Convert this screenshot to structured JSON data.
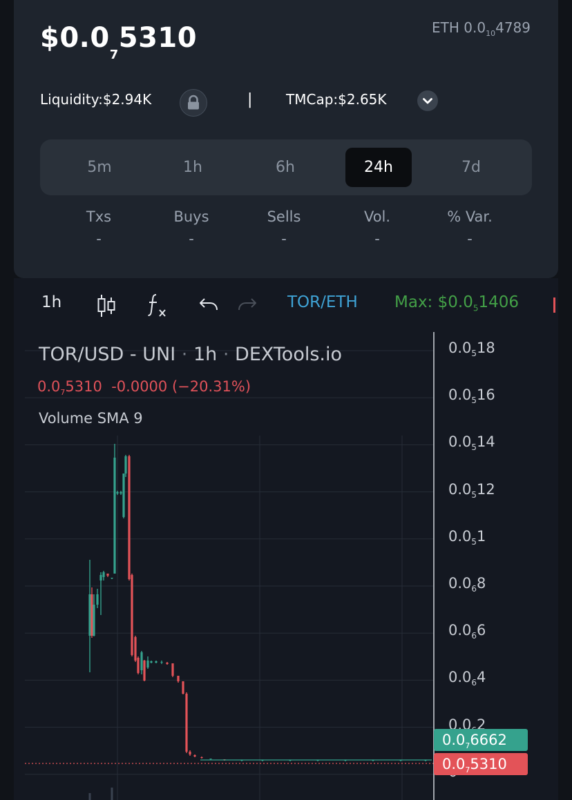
{
  "header": {
    "price_main": "$0.0",
    "price_sub": "7",
    "price_tail": "5310",
    "eth_prefix": "ETH 0.0",
    "eth_sub": "10",
    "eth_tail": "4789"
  },
  "stats": {
    "liquidity_label": "Liquidity:",
    "liquidity_value": "$2.94K",
    "separator": "|",
    "tmcap_label": "TMCap:",
    "tmcap_value": "$2.65K"
  },
  "timeframes": [
    {
      "label": "5m",
      "active": false
    },
    {
      "label": "1h",
      "active": false
    },
    {
      "label": "6h",
      "active": false
    },
    {
      "label": "24h",
      "active": true
    },
    {
      "label": "7d",
      "active": false
    }
  ],
  "metrics": [
    {
      "label": "Txs",
      "value": "-"
    },
    {
      "label": "Buys",
      "value": "-"
    },
    {
      "label": "Sells",
      "value": "-"
    },
    {
      "label": "Vol.",
      "value": "-"
    },
    {
      "label": "% Var.",
      "value": "-"
    }
  ],
  "toolbar": {
    "interval": "1h",
    "pair": "TOR/ETH",
    "max_prefix": "Max: $0.0",
    "max_sub": "5",
    "max_tail": "1406"
  },
  "legend": {
    "symbol": "TOR/USD",
    "dash": "-",
    "exchange": "UNI",
    "interval": "1h",
    "source": "DEXTools.io",
    "price_prefix": "0.0",
    "price_sub": "7",
    "price_tail": "5310",
    "change": "-0.0000 (−20.31%)",
    "volume_indicator": "Volume SMA 9"
  },
  "price_axis": [
    {
      "prefix": "0.0",
      "sub": "5",
      "tail": "18"
    },
    {
      "prefix": "0.0",
      "sub": "5",
      "tail": "16"
    },
    {
      "prefix": "0.0",
      "sub": "5",
      "tail": "14"
    },
    {
      "prefix": "0.0",
      "sub": "5",
      "tail": "12"
    },
    {
      "prefix": "0.0",
      "sub": "5",
      "tail": "1"
    },
    {
      "prefix": "0.0",
      "sub": "6",
      "tail": "8"
    },
    {
      "prefix": "0.0",
      "sub": "6",
      "tail": "6"
    },
    {
      "prefix": "0.0",
      "sub": "6",
      "tail": "4"
    },
    {
      "prefix": "0.0",
      "sub": "6",
      "tail": "2"
    },
    {
      "prefix": "0",
      "sub": "",
      "tail": ""
    }
  ],
  "price_tags": {
    "last_prefix": "0.0",
    "last_sub": "7",
    "last_tail": "6662",
    "current_prefix": "0.0",
    "current_sub": "7",
    "current_tail": "5310"
  },
  "colors": {
    "up": "#35a28d",
    "down": "#e35358",
    "pair": "#3fa3d6",
    "max": "#43a047"
  },
  "icons": {
    "lock": "lock-icon",
    "dropdown": "chevron-down-icon",
    "candles": "candlestick-icon",
    "indicators": "fx-icon",
    "undo": "undo-icon",
    "redo": "redo-icon"
  }
}
